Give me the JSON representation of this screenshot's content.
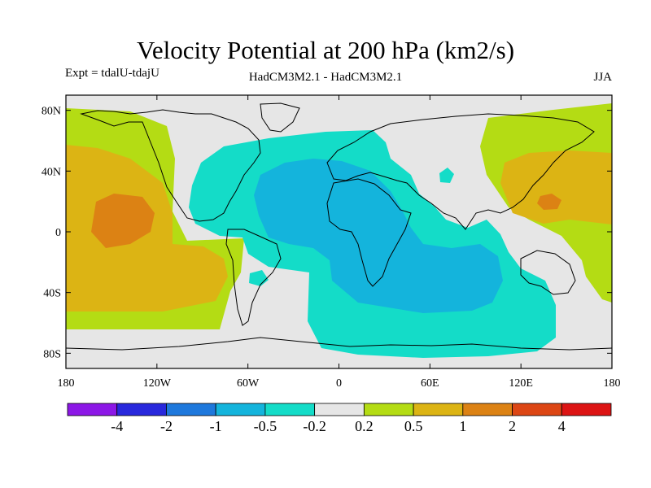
{
  "title": "Velocity Potential at 200 hPa (km2/s)",
  "subtitle_left": "Expt = tdalU-tdajU",
  "subtitle_center": "HadCM3M2.1 - HadCM3M2.1",
  "subtitle_right": "JJA",
  "map": {
    "projection": "cylindrical equidistant",
    "lon_range": [
      -180,
      180
    ],
    "lat_range": [
      -90,
      90
    ],
    "lat_ticks": [
      {
        "value": 80,
        "label": "80N"
      },
      {
        "value": 40,
        "label": "40N"
      },
      {
        "value": 0,
        "label": "0"
      },
      {
        "value": -40,
        "label": "40S"
      },
      {
        "value": -80,
        "label": "80S"
      }
    ],
    "lon_ticks": [
      {
        "value": -180,
        "label": "180"
      },
      {
        "value": -120,
        "label": "120W"
      },
      {
        "value": -60,
        "label": "60W"
      },
      {
        "value": 0,
        "label": "0"
      },
      {
        "value": 60,
        "label": "60E"
      },
      {
        "value": 120,
        "label": "120E"
      },
      {
        "value": 180,
        "label": "180"
      }
    ]
  },
  "colorbar": {
    "colors": [
      "#8c17e6",
      "#2828dc",
      "#1e78dc",
      "#14b4dc",
      "#14dcc8",
      "#e6e6e6",
      "#b4dc14",
      "#dcb414",
      "#dc8214",
      "#dc4614",
      "#dc1414"
    ],
    "labels": [
      "-4",
      "-2",
      "-1",
      "-0.5",
      "-0.2",
      "0.2",
      "0.5",
      "1",
      "2",
      "4"
    ]
  },
  "chart_data": {
    "type": "heatmap",
    "title": "Velocity Potential at 200 hPa (km2/s)",
    "variable": "200 hPa velocity potential difference",
    "units": "km2/s",
    "season": "JJA",
    "contour_levels": [
      -4,
      -2,
      -1,
      -0.5,
      -0.2,
      0.2,
      0.5,
      1,
      2,
      4
    ],
    "regions": [
      {
        "name": "Atlantic-Africa-Indian Ocean low",
        "sign": "negative",
        "range": [
          -0.5,
          -0.2
        ],
        "core": "tropical Atlantic / Africa / south Indian Ocean"
      },
      {
        "name": "Central Pacific high",
        "sign": "positive",
        "range": [
          1,
          2
        ],
        "core": "eastern North Pacific"
      },
      {
        "name": "West Pacific high",
        "sign": "positive",
        "range": [
          1,
          2
        ],
        "core": "East Asia / western Pacific"
      }
    ]
  }
}
